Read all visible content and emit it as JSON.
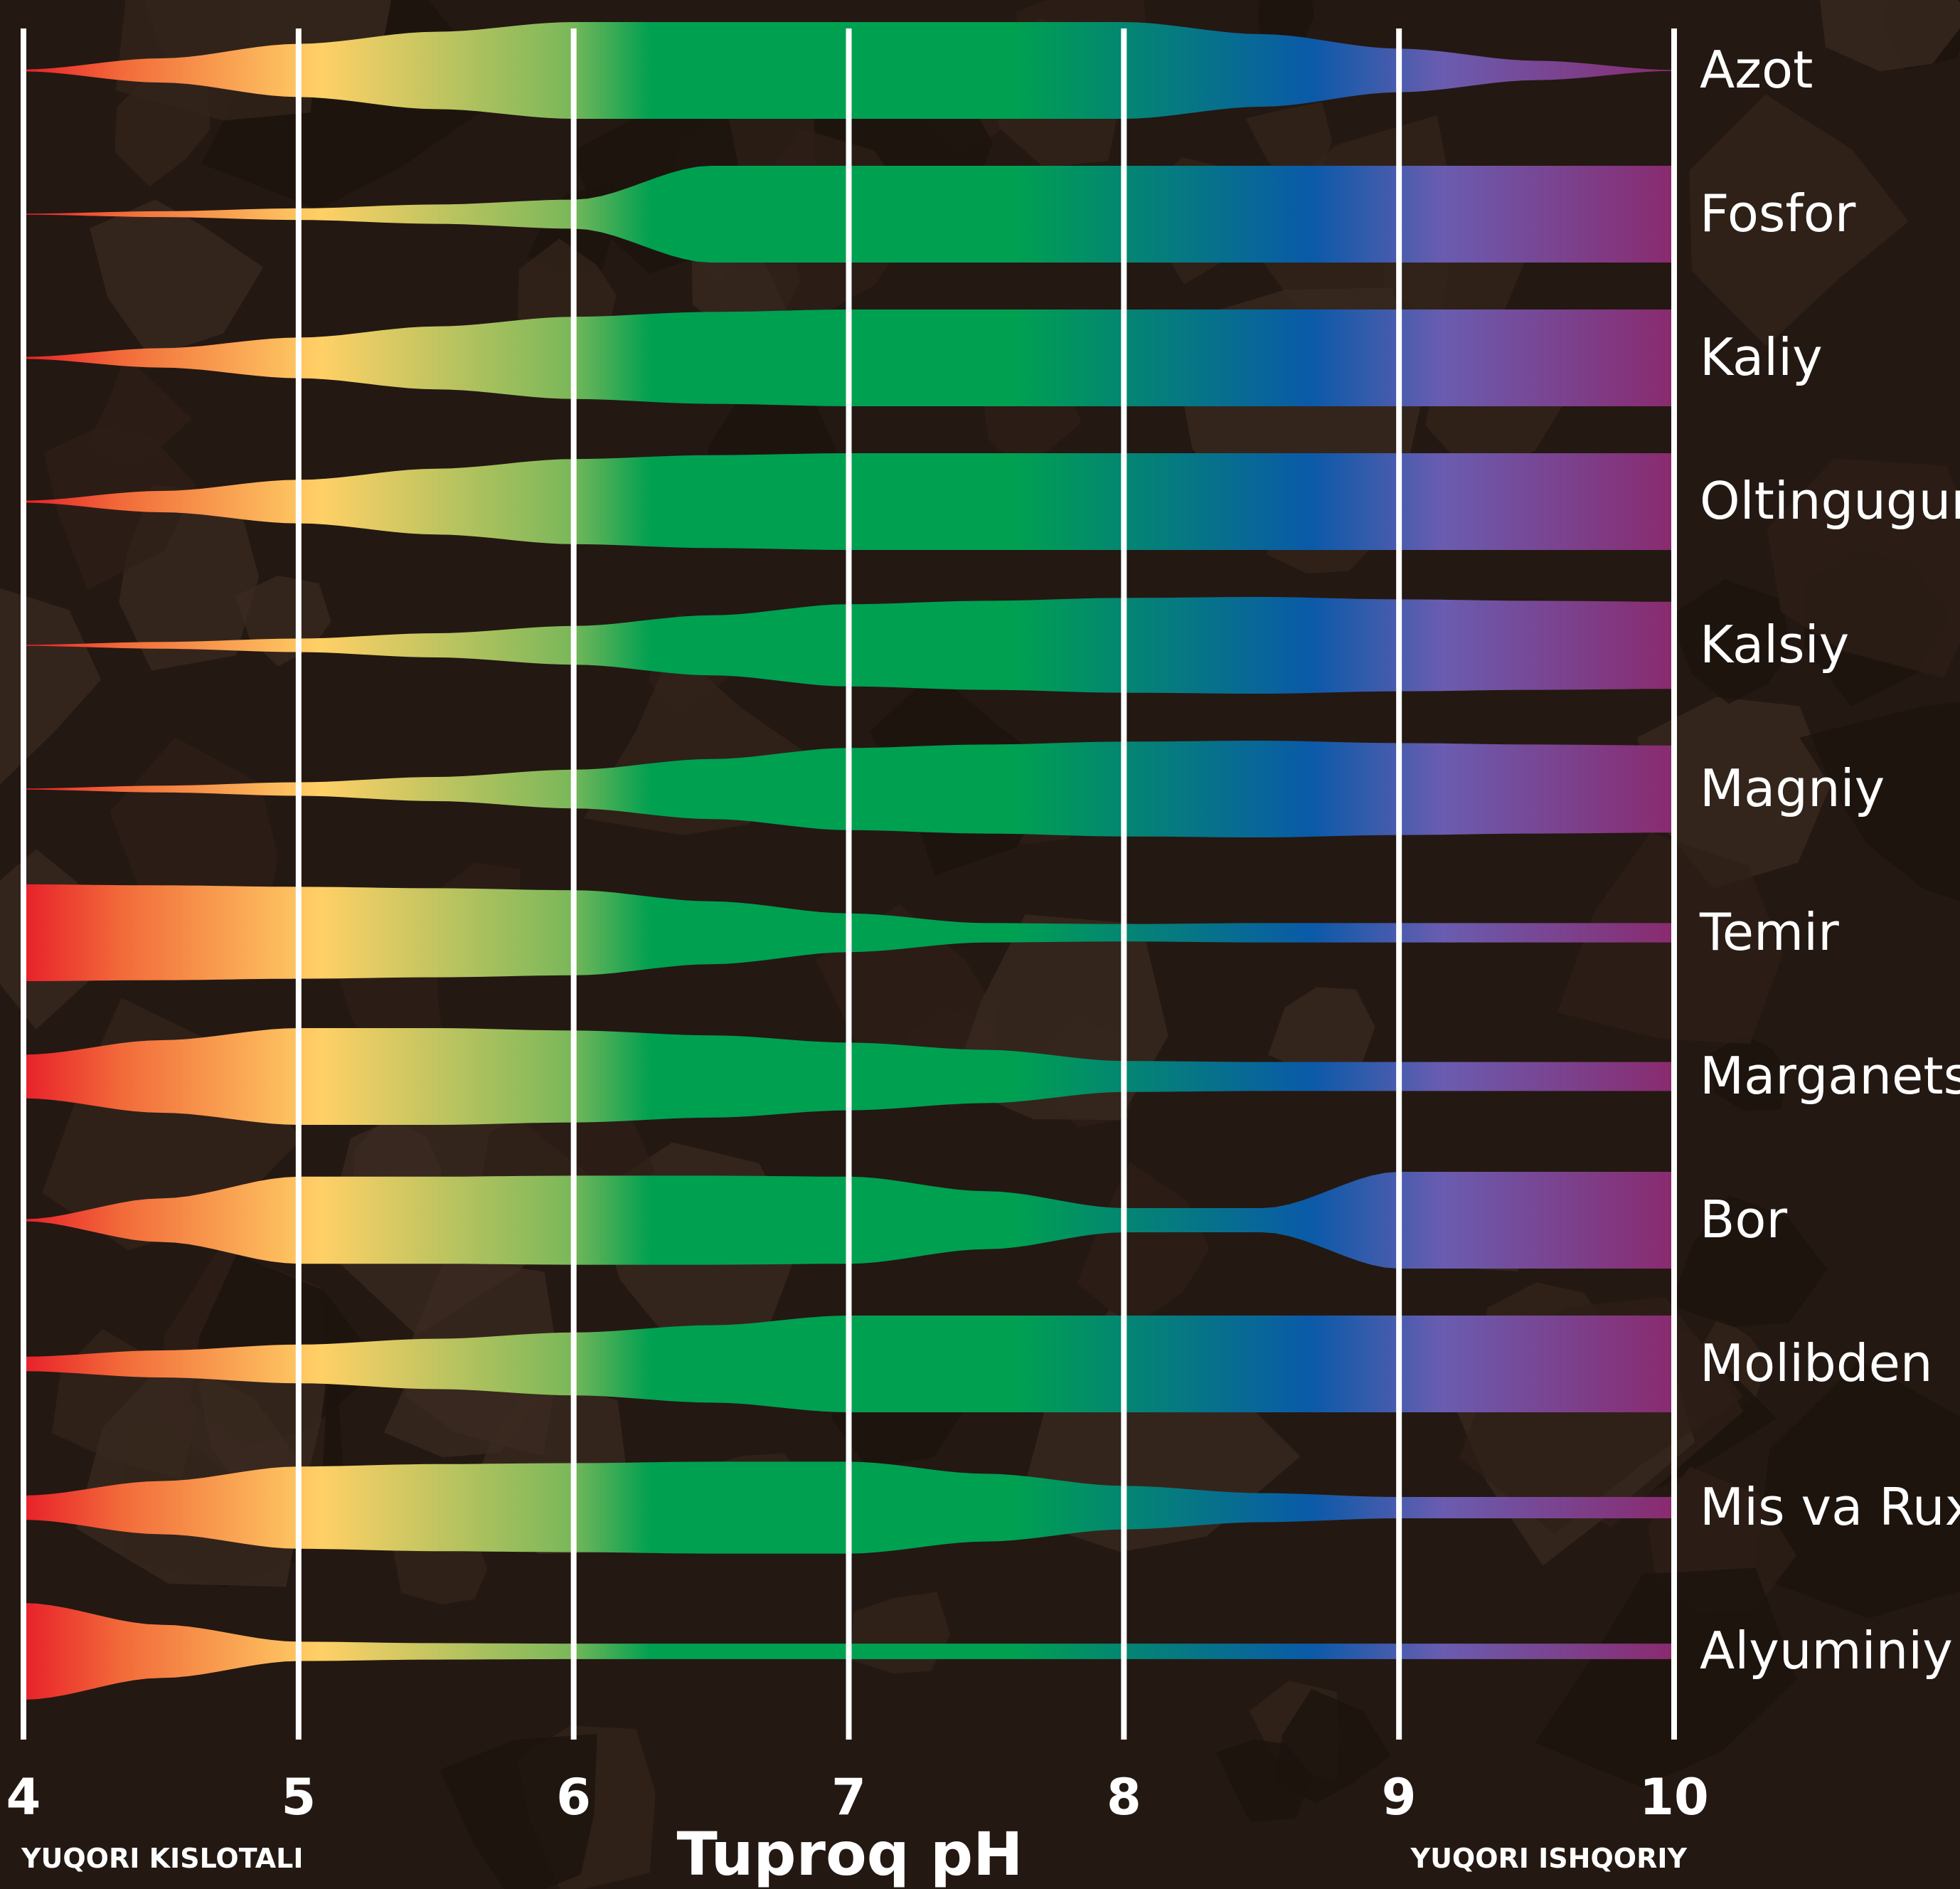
{
  "chart_data": {
    "type": "area",
    "title": "",
    "xlabel": "Tuproq pH",
    "ylabel": "",
    "xlim": [
      4,
      10
    ],
    "x_ticks": [
      4,
      5,
      6,
      7,
      8,
      9,
      10
    ],
    "x_tick_labels": [
      "4",
      "5",
      "6",
      "7",
      "8",
      "9",
      "10"
    ],
    "x_left_annotation": "YUQORI KISLOTALI",
    "x_right_annotation": "YUQORI ISHQORIY",
    "grid": true,
    "value_description": "relative availability (band thickness) at each pH",
    "x": [
      4,
      4.5,
      5,
      5.5,
      6,
      6.5,
      7,
      7.5,
      8,
      8.5,
      9,
      9.5,
      10
    ],
    "series": [
      {
        "name": "Azot",
        "values": [
          0.02,
          0.25,
          0.55,
          0.8,
          1.0,
          1.0,
          1.0,
          1.0,
          1.0,
          0.75,
          0.45,
          0.2,
          0.01
        ]
      },
      {
        "name": "Fosfor",
        "values": [
          0.01,
          0.06,
          0.12,
          0.2,
          0.3,
          1.0,
          1.0,
          1.0,
          1.0,
          1.0,
          1.0,
          1.0,
          1.0
        ]
      },
      {
        "name": "Kaliy",
        "values": [
          0.02,
          0.2,
          0.42,
          0.65,
          0.85,
          0.95,
          1.0,
          1.0,
          1.0,
          1.0,
          1.0,
          1.0,
          1.0
        ]
      },
      {
        "name": "Oltingugurt",
        "values": [
          0.02,
          0.22,
          0.45,
          0.68,
          0.88,
          0.96,
          1.0,
          1.0,
          1.0,
          1.0,
          1.0,
          1.0,
          1.0
        ]
      },
      {
        "name": "Kalsiy",
        "values": [
          0.01,
          0.07,
          0.14,
          0.25,
          0.4,
          0.62,
          0.85,
          0.92,
          0.98,
          1.0,
          0.95,
          0.92,
          0.9
        ]
      },
      {
        "name": "Magniy",
        "values": [
          0.01,
          0.07,
          0.14,
          0.25,
          0.4,
          0.62,
          0.85,
          0.92,
          0.98,
          1.0,
          0.95,
          0.92,
          0.9
        ]
      },
      {
        "name": "Temir",
        "values": [
          1.0,
          0.98,
          0.95,
          0.92,
          0.88,
          0.65,
          0.4,
          0.2,
          0.18,
          0.2,
          0.2,
          0.2,
          0.2
        ]
      },
      {
        "name": "Marganets",
        "values": [
          0.45,
          0.75,
          1.0,
          1.0,
          0.95,
          0.85,
          0.7,
          0.55,
          0.32,
          0.3,
          0.3,
          0.3,
          0.3
        ]
      },
      {
        "name": "Bor",
        "values": [
          0.02,
          0.45,
          0.9,
          0.9,
          0.92,
          0.92,
          0.9,
          0.6,
          0.25,
          0.25,
          1.0,
          1.0,
          1.0
        ]
      },
      {
        "name": "Molibden",
        "values": [
          0.15,
          0.28,
          0.4,
          0.52,
          0.65,
          0.8,
          1.0,
          1.0,
          1.0,
          1.0,
          1.0,
          1.0,
          1.0
        ]
      },
      {
        "name": "Mis va Rux",
        "values": [
          0.25,
          0.55,
          0.85,
          0.9,
          0.92,
          0.95,
          0.95,
          0.7,
          0.45,
          0.3,
          0.22,
          0.22,
          0.22
        ]
      },
      {
        "name": "Alyuminiy",
        "values": [
          1.0,
          0.55,
          0.2,
          0.17,
          0.16,
          0.16,
          0.16,
          0.16,
          0.16,
          0.16,
          0.16,
          0.16,
          0.16
        ]
      }
    ],
    "colors": {
      "background": "#241812",
      "gridline": "#ffffff",
      "gradient": [
        "#e8202a",
        "#f26b3a",
        "#ffd066",
        "#7cb85a",
        "#00a051",
        "#00a051",
        "#0a5aa8",
        "#6a5cb0",
        "#8a2a6e"
      ]
    }
  }
}
